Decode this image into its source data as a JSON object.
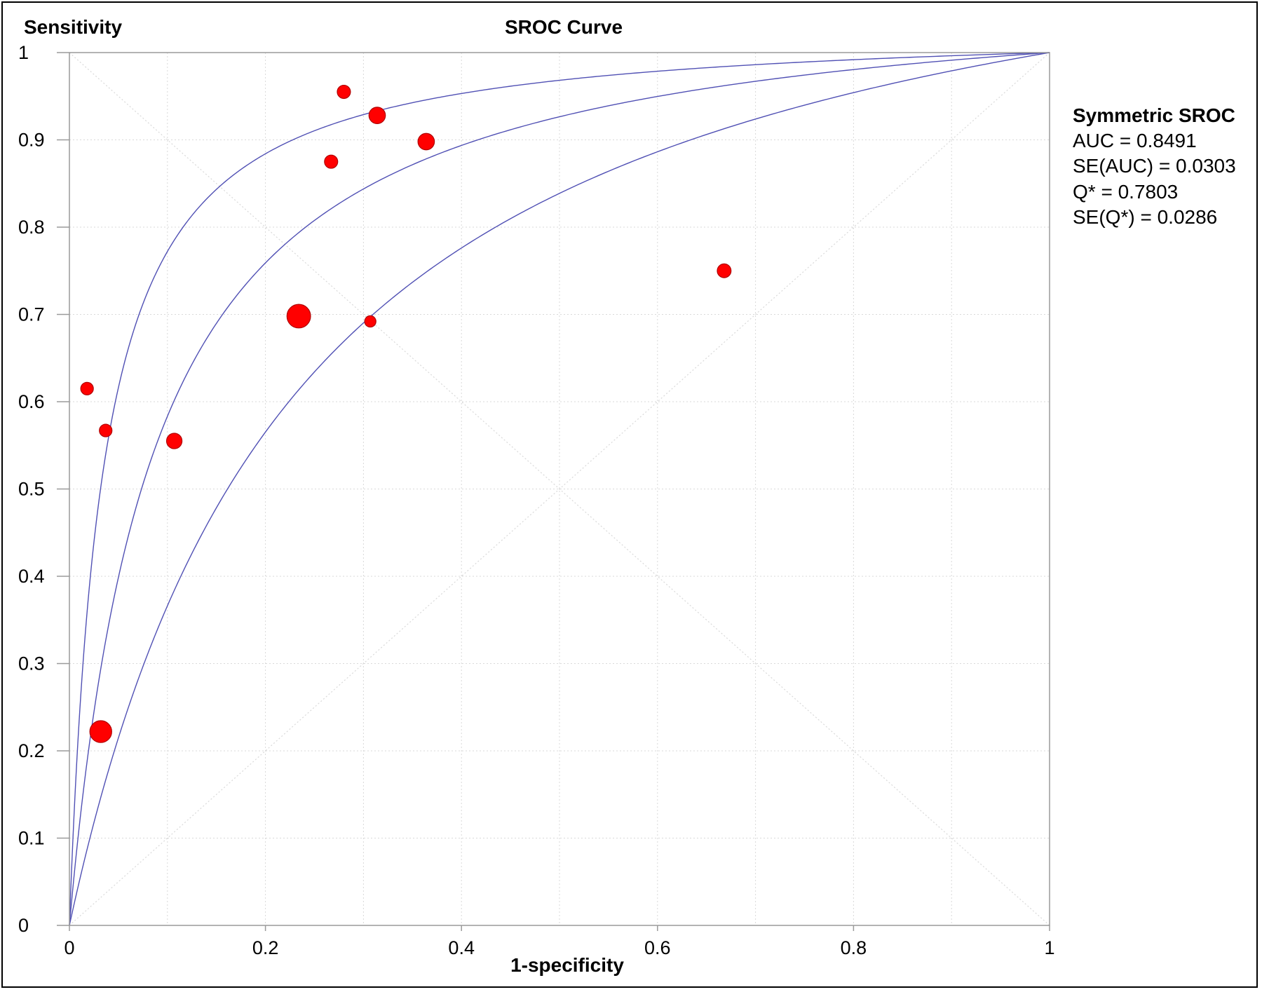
{
  "chart_data": {
    "type": "scatter",
    "title": "SROC Curve",
    "ylabel": "Sensitivity",
    "xlabel": "1-specificity",
    "xlim": [
      0,
      1
    ],
    "ylim": [
      0,
      1
    ],
    "grid": true,
    "x_ticks": [
      "0",
      "0.2",
      "0.4",
      "0.6",
      "0.8",
      "1"
    ],
    "y_ticks": [
      "0",
      "0.1",
      "0.2",
      "0.3",
      "0.4",
      "0.5",
      "0.6",
      "0.7",
      "0.8",
      "0.9",
      "1"
    ],
    "points": [
      {
        "x": 0.018,
        "y": 0.615,
        "weight": 1.0
      },
      {
        "x": 0.037,
        "y": 0.567,
        "weight": 1.0
      },
      {
        "x": 0.032,
        "y": 0.222,
        "weight": 3.0
      },
      {
        "x": 0.107,
        "y": 0.555,
        "weight": 1.5
      },
      {
        "x": 0.234,
        "y": 0.698,
        "weight": 3.5
      },
      {
        "x": 0.267,
        "y": 0.875,
        "weight": 1.1
      },
      {
        "x": 0.28,
        "y": 0.955,
        "weight": 1.1
      },
      {
        "x": 0.307,
        "y": 0.692,
        "weight": 0.8
      },
      {
        "x": 0.314,
        "y": 0.928,
        "weight": 1.7
      },
      {
        "x": 0.364,
        "y": 0.898,
        "weight": 1.7
      },
      {
        "x": 0.668,
        "y": 0.75,
        "weight": 1.2
      }
    ],
    "curves": {
      "type": "symmetric-sroc",
      "center_diagnostic_odds_ratio": 12.6,
      "band": [
        5.2,
        30.5
      ]
    },
    "reference_lines": [
      "diagonal",
      "anti-diagonal"
    ],
    "legend_position": "right",
    "legend": {
      "title": "Symmetric SROC",
      "lines": [
        "AUC = 0.8491",
        "SE(AUC) = 0.0303",
        "Q* = 0.7803",
        "SE(Q*) = 0.0286"
      ]
    },
    "colors": {
      "curve": "#5050b4",
      "point_fill": "#ff0000",
      "point_stroke": "#b00000",
      "grid": "#d9d9d9",
      "axis": "#9a9a9a"
    }
  }
}
